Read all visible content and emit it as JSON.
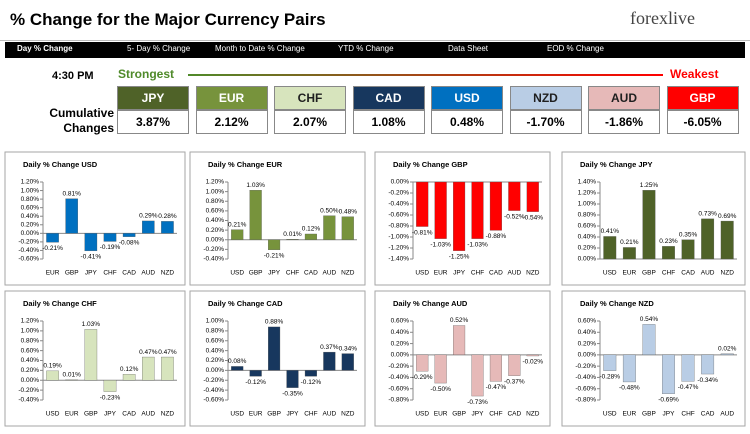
{
  "header": {
    "title": "% Change for the Major Currency Pairs",
    "logo": "forexlive"
  },
  "nav": [
    "Day % Change",
    "5- Day % Change",
    "Month to Date % Change",
    "YTD % Change",
    "Data Sheet",
    "EOD % Change"
  ],
  "summary": {
    "time": "4:30 PM",
    "strongest": "Strongest",
    "weakest": "Weakest",
    "label": "Cumulative Changes",
    "names": [
      "JPY",
      "EUR",
      "CHF",
      "CAD",
      "USD",
      "NZD",
      "AUD",
      "GBP"
    ],
    "colors": [
      "#4f6228",
      "#77933c",
      "#d7e4bd",
      "#17375e",
      "#0070c0",
      "#b9cde5",
      "#e6b9b8",
      "#ff0000"
    ],
    "changes": [
      "3.87%",
      "2.12%",
      "2.07%",
      "1.08%",
      "0.48%",
      "-1.70%",
      "-1.86%",
      "-6.05%"
    ]
  },
  "chart_data": [
    {
      "type": "bar",
      "title": "Daily % Change USD",
      "color": "#0070c0",
      "categories": [
        "EUR",
        "GBP",
        "JPY",
        "CHF",
        "CAD",
        "AUD",
        "NZD"
      ],
      "values": [
        -0.21,
        0.81,
        -0.41,
        -0.19,
        -0.08,
        0.29,
        0.28
      ],
      "value_labels": [
        "-0.21%",
        "0.81%",
        "-0.41%",
        "-0.19%",
        "-0.08%",
        "0.29%",
        "0.28%"
      ],
      "ylim": [
        -0.6,
        1.2
      ],
      "yticks": [
        {
          "value": -0.6,
          "label": "-0.60%"
        },
        {
          "value": -0.4,
          "label": "-0.40%"
        },
        {
          "value": -0.2,
          "label": "-0.20%"
        },
        {
          "value": 0,
          "label": "0.00%"
        },
        {
          "value": 0.2,
          "label": "0.20%"
        },
        {
          "value": 0.4,
          "label": "0.40%"
        },
        {
          "value": 0.6,
          "label": "0.60%"
        },
        {
          "value": 0.8,
          "label": "0.80%"
        },
        {
          "value": 1.0,
          "label": "1.00%"
        },
        {
          "value": 1.2,
          "label": "1.20%"
        }
      ]
    },
    {
      "type": "bar",
      "title": "Daily % Change EUR",
      "color": "#77933c",
      "categories": [
        "USD",
        "GBP",
        "JPY",
        "CHF",
        "CAD",
        "AUD",
        "NZD"
      ],
      "values": [
        0.21,
        1.03,
        -0.21,
        0.01,
        0.12,
        0.5,
        0.48
      ],
      "value_labels": [
        "0.21%",
        "1.03%",
        "-0.21%",
        "0.01%",
        "0.12%",
        "0.50%",
        "0.48%"
      ],
      "ylim": [
        -0.4,
        1.2
      ],
      "yticks": [
        {
          "value": -0.4,
          "label": "-0.40%"
        },
        {
          "value": -0.2,
          "label": "-0.20%"
        },
        {
          "value": 0,
          "label": "0.00%"
        },
        {
          "value": 0.2,
          "label": "0.20%"
        },
        {
          "value": 0.4,
          "label": "0.40%"
        },
        {
          "value": 0.6,
          "label": "0.60%"
        },
        {
          "value": 0.8,
          "label": "0.80%"
        },
        {
          "value": 1.0,
          "label": "1.00%"
        },
        {
          "value": 1.2,
          "label": "1.20%"
        }
      ]
    },
    {
      "type": "bar",
      "title": "Daily % Change GBP",
      "color": "#ff0000",
      "categories": [
        "USD",
        "EUR",
        "JPY",
        "CHF",
        "CAD",
        "AUD",
        "NZD"
      ],
      "values": [
        -0.81,
        -1.03,
        -1.25,
        -1.03,
        -0.88,
        -0.52,
        -0.54
      ],
      "value_labels": [
        "-0.81%",
        "-1.03%",
        "-1.25%",
        "-1.03%",
        "-0.88%",
        "-0.52%",
        "-0.54%"
      ],
      "ylim": [
        -1.4,
        0
      ],
      "yticks": [
        {
          "value": -1.4,
          "label": "-1.40%"
        },
        {
          "value": -1.2,
          "label": "-1.20%"
        },
        {
          "value": -1.0,
          "label": "-1.00%"
        },
        {
          "value": -0.8,
          "label": "-0.80%"
        },
        {
          "value": -0.6,
          "label": "-0.60%"
        },
        {
          "value": -0.4,
          "label": "-0.40%"
        },
        {
          "value": -0.2,
          "label": "-0.20%"
        },
        {
          "value": 0,
          "label": "0.00%"
        }
      ]
    },
    {
      "type": "bar",
      "title": "Daily % Change JPY",
      "color": "#4f6228",
      "categories": [
        "USD",
        "EUR",
        "GBP",
        "CHF",
        "CAD",
        "AUD",
        "NZD"
      ],
      "values": [
        0.41,
        0.21,
        1.25,
        0.23,
        0.35,
        0.73,
        0.69
      ],
      "value_labels": [
        "0.41%",
        "0.21%",
        "1.25%",
        "0.23%",
        "0.35%",
        "0.73%",
        "0.69%"
      ],
      "ylim": [
        0,
        1.4
      ],
      "yticks": [
        {
          "value": 0,
          "label": "0.00%"
        },
        {
          "value": 0.2,
          "label": "0.20%"
        },
        {
          "value": 0.4,
          "label": "0.40%"
        },
        {
          "value": 0.6,
          "label": "0.60%"
        },
        {
          "value": 0.8,
          "label": "0.80%"
        },
        {
          "value": 1.0,
          "label": "1.00%"
        },
        {
          "value": 1.2,
          "label": "1.20%"
        },
        {
          "value": 1.4,
          "label": "1.40%"
        }
      ]
    },
    {
      "type": "bar",
      "title": "Daily % Change CHF",
      "color": "#d7e4bd",
      "categories": [
        "USD",
        "EUR",
        "GBP",
        "JPY",
        "CAD",
        "AUD",
        "NZD"
      ],
      "values": [
        0.19,
        0.01,
        1.03,
        -0.23,
        0.12,
        0.47,
        0.47
      ],
      "value_labels": [
        "0.19%",
        "0.01%",
        "1.03%",
        "-0.23%",
        "0.12%",
        "0.47%",
        "0.47%"
      ],
      "ylim": [
        -0.4,
        1.2
      ],
      "yticks": [
        {
          "value": -0.4,
          "label": "-0.40%"
        },
        {
          "value": -0.2,
          "label": "-0.20%"
        },
        {
          "value": 0,
          "label": "0.00%"
        },
        {
          "value": 0.2,
          "label": "0.20%"
        },
        {
          "value": 0.4,
          "label": "0.40%"
        },
        {
          "value": 0.6,
          "label": "0.60%"
        },
        {
          "value": 0.8,
          "label": "0.80%"
        },
        {
          "value": 1.0,
          "label": "1.00%"
        },
        {
          "value": 1.2,
          "label": "1.20%"
        }
      ]
    },
    {
      "type": "bar",
      "title": "Daily % Change CAD",
      "color": "#17375e",
      "categories": [
        "USD",
        "EUR",
        "GBP",
        "JPY",
        "CHF",
        "AUD",
        "NZD"
      ],
      "values": [
        0.08,
        -0.12,
        0.88,
        -0.35,
        -0.12,
        0.37,
        0.34
      ],
      "value_labels": [
        "0.08%",
        "-0.12%",
        "0.88%",
        "-0.35%",
        "-0.12%",
        "0.37%",
        "0.34%"
      ],
      "ylim": [
        -0.6,
        1.0
      ],
      "yticks": [
        {
          "value": -0.6,
          "label": "-0.60%"
        },
        {
          "value": -0.4,
          "label": "-0.40%"
        },
        {
          "value": -0.2,
          "label": "-0.20%"
        },
        {
          "value": 0,
          "label": "0.00%"
        },
        {
          "value": 0.2,
          "label": "0.20%"
        },
        {
          "value": 0.4,
          "label": "0.40%"
        },
        {
          "value": 0.6,
          "label": "0.60%"
        },
        {
          "value": 0.8,
          "label": "0.80%"
        },
        {
          "value": 1.0,
          "label": "1.00%"
        }
      ]
    },
    {
      "type": "bar",
      "title": "Daily % Change AUD",
      "color": "#e6b9b8",
      "categories": [
        "USD",
        "EUR",
        "GBP",
        "JPY",
        "CHF",
        "CAD",
        "NZD"
      ],
      "values": [
        -0.29,
        -0.5,
        0.52,
        -0.73,
        -0.47,
        -0.37,
        -0.02
      ],
      "value_labels": [
        "-0.29%",
        "-0.50%",
        "0.52%",
        "-0.73%",
        "-0.47%",
        "-0.37%",
        "-0.02%"
      ],
      "ylim": [
        -0.8,
        0.6
      ],
      "yticks": [
        {
          "value": -0.8,
          "label": "-0.80%"
        },
        {
          "value": -0.6,
          "label": "-0.60%"
        },
        {
          "value": -0.4,
          "label": "-0.40%"
        },
        {
          "value": -0.2,
          "label": "-0.20%"
        },
        {
          "value": 0,
          "label": "0.00%"
        },
        {
          "value": 0.2,
          "label": "0.20%"
        },
        {
          "value": 0.4,
          "label": "0.40%"
        },
        {
          "value": 0.6,
          "label": "0.60%"
        }
      ]
    },
    {
      "type": "bar",
      "title": "Daily % Change NZD",
      "color": "#b9cde5",
      "categories": [
        "USD",
        "EUR",
        "GBP",
        "JPY",
        "CHF",
        "CAD",
        "AUD"
      ],
      "values": [
        -0.28,
        -0.48,
        0.54,
        -0.69,
        -0.47,
        -0.34,
        0.02
      ],
      "value_labels": [
        "-0.28%",
        "-0.48%",
        "0.54%",
        "-0.69%",
        "-0.47%",
        "-0.34%",
        "0.02%"
      ],
      "ylim": [
        -0.8,
        0.6
      ],
      "yticks": [
        {
          "value": -0.8,
          "label": "-0.80%"
        },
        {
          "value": -0.6,
          "label": "-0.60%"
        },
        {
          "value": -0.4,
          "label": "-0.40%"
        },
        {
          "value": -0.2,
          "label": "-0.20%"
        },
        {
          "value": 0,
          "label": "0.00%"
        },
        {
          "value": 0.2,
          "label": "0.20%"
        },
        {
          "value": 0.4,
          "label": "0.40%"
        },
        {
          "value": 0.6,
          "label": "0.60%"
        }
      ]
    }
  ]
}
